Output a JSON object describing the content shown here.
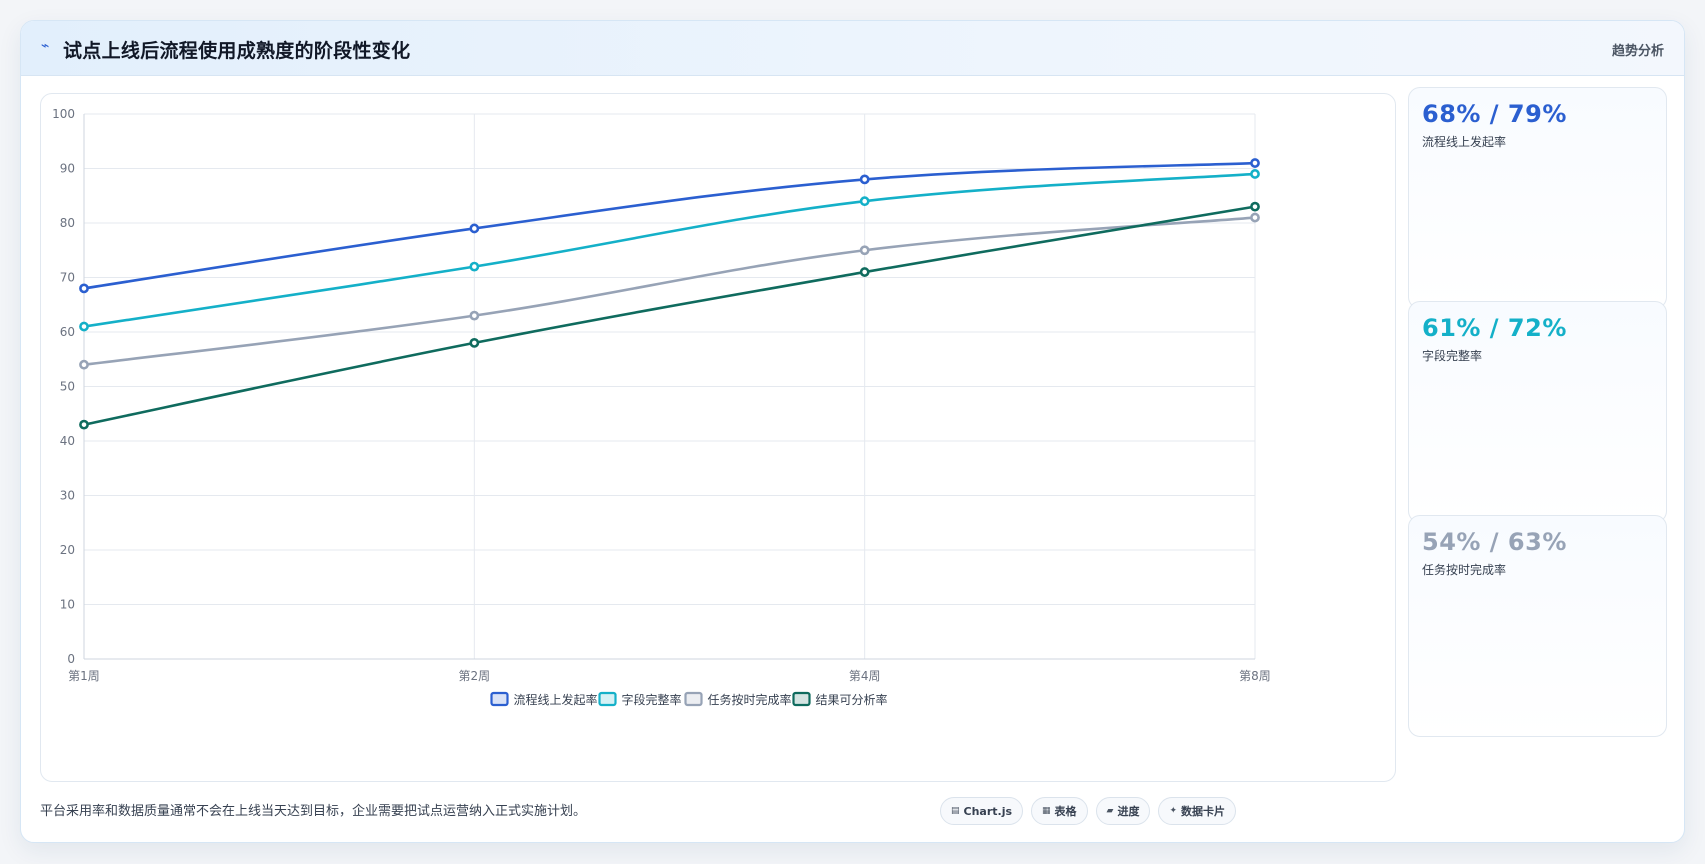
{
  "header": {
    "icon": "trend-icon",
    "title": "试点上线后流程使用成熟度的阶段性变化",
    "tag": "趋势分析"
  },
  "chart_data": {
    "type": "line",
    "categories": [
      "第1周",
      "第2周",
      "第4周",
      "第8周"
    ],
    "ylim": [
      0,
      100
    ],
    "yticks": [
      0,
      10,
      20,
      30,
      40,
      50,
      60,
      70,
      80,
      90,
      100
    ],
    "grid": true,
    "legend_position": "bottom",
    "series": [
      {
        "name": "流程线上发起率",
        "values": [
          68,
          79,
          88,
          91
        ],
        "color": "#2b5fd0"
      },
      {
        "name": "字段完整率",
        "values": [
          61,
          72,
          84,
          89
        ],
        "color": "#14b0c8"
      },
      {
        "name": "任务按时完成率",
        "values": [
          54,
          63,
          75,
          81
        ],
        "color": "#97a3b6"
      },
      {
        "name": "结果可分析率",
        "values": [
          43,
          58,
          71,
          83
        ],
        "color": "#0f6b5e"
      }
    ]
  },
  "kpis": [
    {
      "value": "68% / 79%",
      "label": "流程线上发起率",
      "color": "#2b5fd0"
    },
    {
      "value": "61% / 72%",
      "label": "字段完整率",
      "color": "#14b0c8"
    },
    {
      "value": "54% / 63%",
      "label": "任务按时完成率",
      "color": "#97a3b6"
    }
  ],
  "footer": {
    "note": "平台采用率和数据质量通常不会在上线当天达到目标，企业需要把试点运营纳入正式实施计划。",
    "chips": [
      {
        "icon": "chart-icon",
        "glyph": "▤",
        "label": "Chart.js"
      },
      {
        "icon": "table-icon",
        "glyph": "▦",
        "label": "表格"
      },
      {
        "icon": "progress-icon",
        "glyph": "▰",
        "label": "进度"
      },
      {
        "icon": "card-icon",
        "glyph": "✦",
        "label": "数据卡片"
      }
    ]
  }
}
